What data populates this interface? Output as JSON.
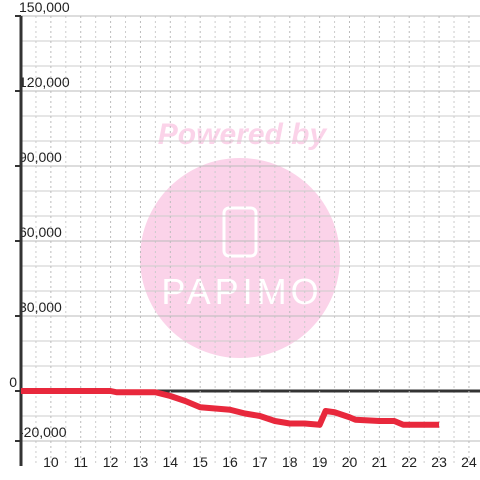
{
  "chart_data": {
    "type": "line",
    "watermark": {
      "top": "Powered by",
      "logo": "PAPIMO"
    },
    "x": [
      9,
      10,
      11,
      12,
      12.2,
      13.5,
      14,
      14.5,
      15,
      15.5,
      16,
      16.5,
      17,
      17.5,
      18,
      18.5,
      19,
      19.2,
      19.5,
      20,
      20.2,
      21,
      21.5,
      21.8,
      22,
      23
    ],
    "series": [
      {
        "color": "#e8283c",
        "values": [
          0,
          0,
          0,
          0,
          -500,
          -500,
          -2000,
          -4000,
          -6500,
          -7000,
          -7500,
          -9000,
          -10000,
          -12000,
          -13000,
          -13000,
          -13500,
          -8000,
          -8500,
          -10500,
          -11500,
          -12000,
          -12000,
          -13500,
          -13500,
          -13500
        ]
      }
    ],
    "xlim": [
      9,
      24.37
    ],
    "ylim": [
      -30000,
      150000
    ],
    "xticks": [
      10,
      11,
      12,
      13,
      14,
      15,
      16,
      17,
      18,
      19,
      20,
      21,
      22,
      23,
      24
    ],
    "yticks": [
      {
        "value": -20000,
        "label": "-20,000"
      },
      0,
      {
        "value": 30000,
        "label": "30,000"
      },
      {
        "value": 60000,
        "label": "60,000"
      },
      {
        "value": 90000,
        "label": "90,000"
      },
      {
        "value": 120000,
        "label": "120,000"
      },
      {
        "value": 150000,
        "label": "150,000"
      }
    ],
    "minor_yticks": [
      -10000,
      10000,
      20000,
      40000,
      50000,
      70000,
      80000,
      100000,
      110000,
      130000,
      140000
    ],
    "minor_xticks": [
      9.5,
      10.5,
      11.5,
      12.5,
      13.5,
      14.5,
      15.5,
      16.5,
      17.5,
      18.5,
      19.5,
      20.5,
      21.5,
      22.5,
      23.5
    ],
    "grid": true
  }
}
